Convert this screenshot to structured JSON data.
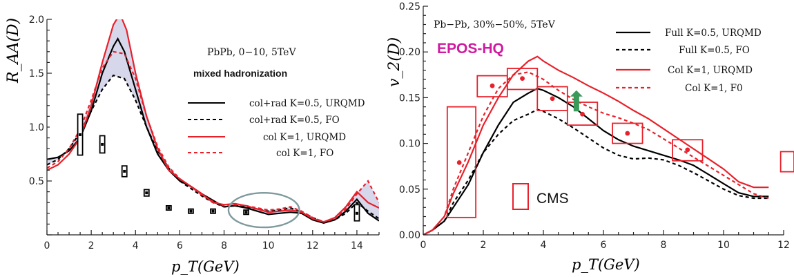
{
  "chart_data": [
    {
      "type": "line",
      "ylabel": "R_AA(D)",
      "xlabel": "p_T(GeV)",
      "xlim": [
        0,
        15
      ],
      "ylim": [
        0,
        2.0
      ],
      "x_ticks": [
        "0",
        "2",
        "4",
        "6",
        "8",
        "10",
        "12",
        "14"
      ],
      "y_ticks": [
        "0.5",
        "1.0",
        "1.5",
        "2.0"
      ],
      "annotations": [
        "PbPb, 0−10, 5TeV",
        "mixed hadronization"
      ],
      "legend_position": "right",
      "series": [
        {
          "name": "col+rad K=0.5, URQMD",
          "color": "#000000",
          "dash": "solid",
          "x": [
            0,
            0.5,
            1,
            1.5,
            2,
            2.5,
            3,
            3.2,
            3.5,
            4,
            4.5,
            5,
            5.5,
            6,
            6.5,
            7,
            7.5,
            8,
            8.5,
            9,
            9.5,
            10,
            10.5,
            11,
            11.5,
            12,
            12.5,
            13,
            13.5,
            14,
            14.5,
            15
          ],
          "y": [
            0.7,
            0.72,
            0.78,
            0.9,
            1.15,
            1.5,
            1.75,
            1.82,
            1.7,
            1.35,
            1.0,
            0.75,
            0.6,
            0.5,
            0.45,
            0.38,
            0.32,
            0.26,
            0.27,
            0.25,
            0.22,
            0.19,
            0.2,
            0.21,
            0.2,
            0.14,
            0.11,
            0.14,
            0.22,
            0.33,
            0.2,
            0.13
          ]
        },
        {
          "name": "col+rad K=0.5, FO",
          "color": "#000000",
          "dash": "dashed",
          "x": [
            0,
            0.5,
            1,
            1.5,
            2,
            2.5,
            3,
            3.5,
            4,
            4.5,
            5,
            5.5,
            6,
            6.5,
            7,
            7.5,
            8,
            8.5,
            9,
            9.5,
            10,
            10.5,
            11,
            11.5,
            12,
            12.5,
            13,
            13.5,
            14,
            14.5,
            15
          ],
          "y": [
            0.65,
            0.7,
            0.8,
            0.95,
            1.15,
            1.35,
            1.48,
            1.45,
            1.25,
            1.0,
            0.78,
            0.62,
            0.5,
            0.43,
            0.36,
            0.3,
            0.26,
            0.27,
            0.26,
            0.24,
            0.22,
            0.23,
            0.25,
            0.21,
            0.16,
            0.12,
            0.14,
            0.2,
            0.3,
            0.22,
            0.15
          ]
        },
        {
          "name": "col K=1, URQMD",
          "color": "#e8202a",
          "dash": "solid",
          "x": [
            0,
            0.5,
            1,
            1.5,
            2,
            2.5,
            3,
            3.3,
            3.6,
            4,
            4.5,
            5,
            5.5,
            6,
            6.5,
            7,
            7.5,
            8,
            8.5,
            9,
            9.5,
            10,
            10.5,
            11,
            11.5,
            12,
            12.5,
            13,
            13.5,
            14,
            14.5,
            15
          ],
          "y": [
            0.6,
            0.65,
            0.75,
            0.9,
            1.2,
            1.6,
            1.95,
            2.05,
            1.9,
            1.5,
            1.1,
            0.8,
            0.6,
            0.52,
            0.45,
            0.38,
            0.3,
            0.28,
            0.29,
            0.27,
            0.24,
            0.21,
            0.22,
            0.23,
            0.21,
            0.15,
            0.12,
            0.16,
            0.26,
            0.4,
            0.3,
            0.25
          ]
        },
        {
          "name": "col K=1, FO",
          "color": "#e8202a",
          "dash": "dashed",
          "x": [
            0,
            0.5,
            1,
            1.5,
            2,
            2.5,
            3,
            3.5,
            4,
            4.5,
            5,
            5.5,
            6,
            6.5,
            7,
            7.5,
            8,
            8.5,
            9,
            9.5,
            10,
            10.5,
            11,
            11.5,
            12,
            12.5,
            13,
            13.5,
            14,
            14.5,
            15
          ],
          "y": [
            0.62,
            0.68,
            0.8,
            0.98,
            1.25,
            1.55,
            1.7,
            1.68,
            1.45,
            1.1,
            0.82,
            0.63,
            0.52,
            0.45,
            0.37,
            0.31,
            0.27,
            0.28,
            0.27,
            0.25,
            0.23,
            0.24,
            0.26,
            0.22,
            0.16,
            0.12,
            0.15,
            0.24,
            0.38,
            0.5,
            0.3
          ]
        }
      ],
      "data_boxes": [
        {
          "x": 1.5,
          "y": 0.93,
          "ylow": 0.74,
          "yhigh": 1.12
        },
        {
          "x": 2.5,
          "y": 0.84,
          "ylow": 0.76,
          "yhigh": 0.92
        },
        {
          "x": 3.5,
          "y": 0.59,
          "ylow": 0.54,
          "yhigh": 0.64
        },
        {
          "x": 4.5,
          "y": 0.39,
          "ylow": 0.36,
          "yhigh": 0.42
        },
        {
          "x": 5.5,
          "y": 0.25,
          "ylow": 0.23,
          "yhigh": 0.27
        },
        {
          "x": 6.5,
          "y": 0.22,
          "ylow": 0.2,
          "yhigh": 0.24
        },
        {
          "x": 7.5,
          "y": 0.22,
          "ylow": 0.2,
          "yhigh": 0.24
        },
        {
          "x": 9.0,
          "y": 0.21,
          "ylow": 0.19,
          "yhigh": 0.23
        },
        {
          "x": 14.0,
          "y": 0.2,
          "ylow": 0.13,
          "yhigh": 0.28
        }
      ],
      "ellipse_highlight": {
        "cx": 9.8,
        "cy": 0.23,
        "rx": 1.6,
        "ry": 0.16
      }
    },
    {
      "type": "line",
      "ylabel": "v_2(D)",
      "xlabel": "p_T(GeV)",
      "xlim": [
        0,
        12
      ],
      "ylim": [
        0,
        0.25
      ],
      "x_ticks": [
        "0",
        "2",
        "4",
        "6",
        "8",
        "10",
        "12"
      ],
      "y_ticks": [
        "0.00",
        "0.05",
        "0.10",
        "0.15",
        "0.20",
        "0.25"
      ],
      "annotations": [
        "Pb−Pb, 30%−50%, 5TeV",
        "EPOS-HQ",
        "CMS"
      ],
      "legend_position": "top-right",
      "series": [
        {
          "name": "Full K=0.5, URQMD",
          "color": "#000000",
          "dash": "solid",
          "x": [
            0,
            0.3,
            0.7,
            1,
            1.5,
            2,
            2.5,
            3,
            3.5,
            3.8,
            4,
            4.5,
            5,
            5.5,
            6,
            6.5,
            7,
            7.5,
            8,
            8.5,
            9,
            9.5,
            10,
            10.5,
            11,
            11.5
          ],
          "y": [
            0,
            0.005,
            0.015,
            0.03,
            0.055,
            0.09,
            0.12,
            0.145,
            0.155,
            0.16,
            0.158,
            0.15,
            0.14,
            0.127,
            0.114,
            0.104,
            0.097,
            0.092,
            0.087,
            0.082,
            0.076,
            0.066,
            0.056,
            0.046,
            0.042,
            0.042
          ]
        },
        {
          "name": "Full K=0.5, FO",
          "color": "#000000",
          "dash": "dashed",
          "x": [
            0,
            0.3,
            0.7,
            1,
            1.5,
            2,
            2.5,
            3,
            3.5,
            3.8,
            4,
            4.5,
            5,
            5.5,
            6,
            6.5,
            7,
            7.5,
            8,
            8.5,
            9,
            9.5,
            10,
            10.5,
            11,
            11.5
          ],
          "y": [
            0,
            0.005,
            0.015,
            0.035,
            0.06,
            0.09,
            0.11,
            0.125,
            0.132,
            0.137,
            0.135,
            0.127,
            0.117,
            0.106,
            0.095,
            0.087,
            0.083,
            0.084,
            0.082,
            0.076,
            0.068,
            0.059,
            0.05,
            0.043,
            0.04,
            0.04
          ]
        },
        {
          "name": "Col K=1, URQMD",
          "color": "#e8202a",
          "dash": "solid",
          "x": [
            0,
            0.3,
            0.7,
            1,
            1.5,
            2,
            2.5,
            3,
            3.5,
            3.8,
            4,
            4.5,
            5,
            5.5,
            6,
            6.5,
            7,
            7.5,
            8,
            8.5,
            9,
            9.5,
            10,
            10.5,
            11,
            11.5
          ],
          "y": [
            0,
            0.005,
            0.02,
            0.045,
            0.08,
            0.12,
            0.15,
            0.175,
            0.19,
            0.195,
            0.19,
            0.18,
            0.172,
            0.163,
            0.155,
            0.146,
            0.136,
            0.127,
            0.116,
            0.105,
            0.094,
            0.083,
            0.072,
            0.058,
            0.052,
            0.052
          ]
        },
        {
          "name": "Col K=1, F0",
          "color": "#e8202a",
          "dash": "dashed",
          "x": [
            0,
            0.3,
            0.7,
            1,
            1.5,
            2,
            2.5,
            3,
            3.5,
            4,
            4.5,
            5,
            5.5,
            6,
            6.5,
            7,
            7.5,
            8,
            8.5,
            9,
            9.5,
            10,
            10.5,
            11,
            11.5
          ],
          "y": [
            0,
            0.005,
            0.02,
            0.05,
            0.09,
            0.13,
            0.16,
            0.175,
            0.178,
            0.17,
            0.158,
            0.148,
            0.14,
            0.133,
            0.128,
            0.122,
            0.115,
            0.105,
            0.095,
            0.085,
            0.075,
            0.065,
            0.055,
            0.045,
            0.04
          ]
        }
      ],
      "cms_points": [
        {
          "x": 1.2,
          "y": 0.079,
          "xlow": 0.8,
          "xhigh": 1.75,
          "ylow": 0.019,
          "yhigh": 0.14
        },
        {
          "x": 2.3,
          "y": 0.163,
          "xlow": 1.8,
          "xhigh": 2.8,
          "ylow": 0.151,
          "yhigh": 0.174
        },
        {
          "x": 3.3,
          "y": 0.171,
          "xlow": 2.8,
          "xhigh": 3.8,
          "ylow": 0.159,
          "yhigh": 0.182
        },
        {
          "x": 4.3,
          "y": 0.149,
          "xlow": 3.8,
          "xhigh": 4.8,
          "ylow": 0.136,
          "yhigh": 0.162
        },
        {
          "x": 5.3,
          "y": 0.132,
          "xlow": 4.8,
          "xhigh": 5.8,
          "ylow": 0.12,
          "yhigh": 0.145
        },
        {
          "x": 6.8,
          "y": 0.111,
          "xlow": 6.3,
          "xhigh": 7.3,
          "ylow": 0.1,
          "yhigh": 0.122
        },
        {
          "x": 8.8,
          "y": 0.093,
          "xlow": 8.3,
          "xhigh": 9.3,
          "ylow": 0.081,
          "yhigh": 0.104
        },
        {
          "x": 12.3,
          "y": 0.08,
          "xlow": 11.9,
          "xhigh": 12.7,
          "ylow": 0.069,
          "yhigh": 0.091
        }
      ],
      "arrow": {
        "x": 5.1,
        "y_from": 0.135,
        "y_to": 0.158,
        "color": "#3a9a5a"
      }
    }
  ],
  "colors": {
    "red": "#e8202a",
    "black": "#000000",
    "band": "#b7b6dc",
    "ellipse": "#7f9a9e",
    "epos": "#d01a9f"
  }
}
